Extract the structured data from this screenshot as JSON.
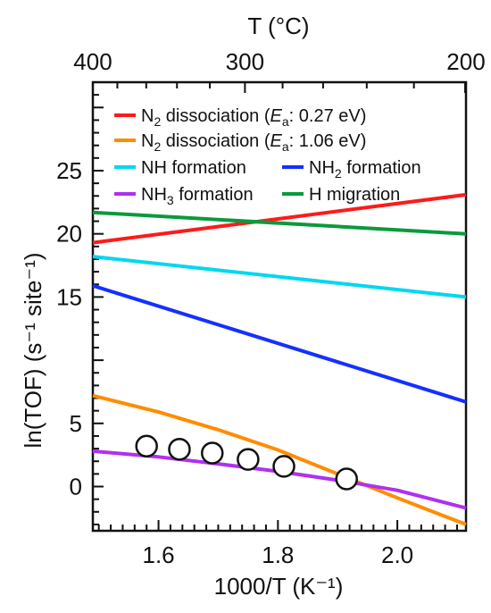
{
  "chart_data": {
    "type": "line",
    "xlabel": "1000/T (K⁻¹)",
    "ylabel": "ln(TOF) (s⁻¹ site⁻¹)",
    "top_xlabel": "T (°C)",
    "xlim": [
      1.49,
      2.115
    ],
    "ylim": [
      -3.5,
      32
    ],
    "x_ticks": [
      "1.6",
      "1.8",
      "2.0"
    ],
    "y_ticks": [
      "0",
      "5",
      "15",
      "20",
      "25"
    ],
    "top_ticks": [
      "400",
      "300",
      "200"
    ],
    "series": [
      {
        "name": "N2 dissociation (Ea: 0.27 eV)",
        "legend": {
          "main": "N",
          "sub": "2",
          "rest": " dissociation  (",
          "ital": "E",
          "ital_sub": "a",
          "tail": ": 0.27 eV)"
        },
        "color": "#ff1a1a",
        "points": [
          [
            1.49,
            19.3
          ],
          [
            2.115,
            23.1
          ]
        ]
      },
      {
        "name": "N2 dissociation (Ea: 1.06 eV)",
        "legend": {
          "main": "N",
          "sub": "2",
          "rest": " dissociation  (",
          "ital": "E",
          "ital_sub": "a",
          "tail": ": 1.06 eV)"
        },
        "color": "#ff8c00",
        "points": [
          [
            1.49,
            7.2
          ],
          [
            1.6,
            5.9
          ],
          [
            1.7,
            4.5
          ],
          [
            1.8,
            2.9
          ],
          [
            1.9,
            1.0
          ],
          [
            2.0,
            -0.9
          ],
          [
            2.06,
            -2.0
          ],
          [
            2.115,
            -3.0
          ]
        ]
      },
      {
        "name": "NH formation",
        "legend": {
          "main": "NH formation"
        },
        "color": "#00d8f0",
        "points": [
          [
            1.49,
            18.2
          ],
          [
            2.115,
            15.0
          ]
        ]
      },
      {
        "name": "NH2 formation",
        "legend": {
          "main": "NH",
          "sub": "2",
          "rest": " formation"
        },
        "color": "#1430ff",
        "points": [
          [
            1.49,
            15.9
          ],
          [
            2.115,
            6.7
          ]
        ]
      },
      {
        "name": "NH3 formation",
        "legend": {
          "main": "NH",
          "sub": "3",
          "rest": " formation"
        },
        "color": "#b030f0",
        "points": [
          [
            1.49,
            2.8
          ],
          [
            1.6,
            2.35
          ],
          [
            1.7,
            1.8
          ],
          [
            1.8,
            1.2
          ],
          [
            1.9,
            0.5
          ],
          [
            2.0,
            -0.3
          ],
          [
            2.115,
            -1.7
          ]
        ]
      },
      {
        "name": "H migration",
        "legend": {
          "main": "H migration"
        },
        "color": "#0a9a3c",
        "points": [
          [
            1.49,
            21.7
          ],
          [
            2.115,
            20.0
          ]
        ]
      }
    ],
    "experimental": {
      "marker": "open-circle",
      "points": [
        [
          1.58,
          3.2
        ],
        [
          1.635,
          2.95
        ],
        [
          1.69,
          2.65
        ],
        [
          1.75,
          2.15
        ],
        [
          1.81,
          1.6
        ],
        [
          1.915,
          0.6
        ]
      ]
    }
  }
}
